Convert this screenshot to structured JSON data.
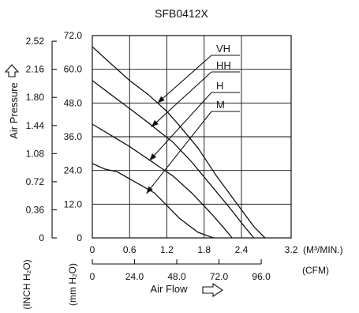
{
  "chart_data": {
    "type": "line",
    "title": "SFB0412X",
    "ylabel": "Air Pressure",
    "xlabel": "Air Flow",
    "y_unit_primary": "(mm H₂O)",
    "y_unit_secondary": "(INCH H₂O)",
    "x_unit_primary": "(M³/MIN.)",
    "x_unit_secondary": "(CFM)",
    "xlim": [
      0,
      3.2
    ],
    "ylim": [
      0,
      72
    ],
    "x_ticks": [
      "0",
      "0.6",
      "1.2",
      "1.8",
      "2.4",
      "3.2"
    ],
    "x_tick_values": [
      0,
      0.6,
      1.2,
      1.8,
      2.4,
      3.2
    ],
    "cfm_ticks": [
      "0",
      "24.0",
      "48.0",
      "72.0",
      "96.0"
    ],
    "cfm_tick_values": [
      0,
      24,
      48,
      72,
      96
    ],
    "y_ticks": [
      "0",
      "12.0",
      "24.0",
      "36.0",
      "48.0",
      "60.0",
      "72.0"
    ],
    "y_tick_values": [
      0,
      12,
      24,
      36,
      48,
      60,
      72
    ],
    "inch_ticks": [
      "0",
      "0.36",
      "0.72",
      "1.08",
      "1.44",
      "1.80",
      "2.16",
      "2.52"
    ],
    "inch_tick_values": [
      0,
      0.36,
      0.72,
      1.08,
      1.44,
      1.8,
      2.16,
      2.52
    ],
    "series": [
      {
        "name": "VH",
        "x": [
          0,
          0.3,
          0.6,
          0.9,
          1.05,
          1.2,
          1.4,
          1.7,
          2.0,
          2.3,
          2.6,
          2.78
        ],
        "y": [
          68,
          62,
          56,
          51,
          48,
          45,
          40,
          32,
          22,
          13,
          4,
          0
        ]
      },
      {
        "name": "HH",
        "x": [
          0,
          0.3,
          0.6,
          0.9,
          1.1,
          1.3,
          1.6,
          1.9,
          2.2,
          2.45,
          2.6
        ],
        "y": [
          56,
          51,
          46,
          41,
          37.5,
          34,
          27,
          19,
          11,
          4,
          0
        ]
      },
      {
        "name": "H",
        "x": [
          0,
          0.3,
          0.6,
          0.9,
          1.1,
          1.3,
          1.6,
          1.9,
          2.1,
          2.25
        ],
        "y": [
          40.5,
          36.5,
          32.5,
          28,
          25,
          22,
          16,
          9,
          4,
          0
        ]
      },
      {
        "name": "M",
        "x": [
          0,
          0.2,
          0.4,
          0.6,
          0.8,
          1.0,
          1.2,
          1.4,
          1.7,
          1.95
        ],
        "y": [
          26.5,
          24.5,
          23.5,
          21,
          18.5,
          16,
          11.5,
          7,
          2,
          0
        ]
      }
    ],
    "curve_label_points": [
      {
        "name": "VH",
        "x": 1.05,
        "y": 48
      },
      {
        "name": "HH",
        "x": 0.95,
        "y": 39.5
      },
      {
        "name": "H",
        "x": 0.92,
        "y": 27.5
      },
      {
        "name": "M",
        "x": 0.87,
        "y": 15.8
      }
    ],
    "grid": true
  }
}
